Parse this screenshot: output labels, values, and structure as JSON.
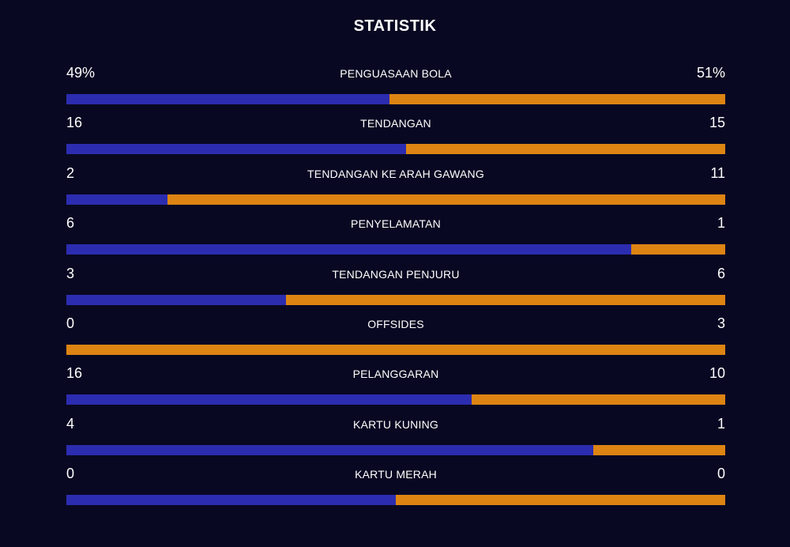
{
  "title": "STATISTIK",
  "colors": {
    "background": "#080822",
    "home": "#2c2cb0",
    "away": "#dd8413",
    "text": "#ffffff"
  },
  "stats": [
    {
      "label": "PENGUASAAN BOLA",
      "home": "49%",
      "away": "51%",
      "home_share": 0.49
    },
    {
      "label": "TENDANGAN",
      "home": "16",
      "away": "15",
      "home_share": 0.516
    },
    {
      "label": "TENDANGAN KE ARAH GAWANG",
      "home": "2",
      "away": "11",
      "home_share": 0.154
    },
    {
      "label": "PENYELAMATAN",
      "home": "6",
      "away": "1",
      "home_share": 0.857
    },
    {
      "label": "TENDANGAN PENJURU",
      "home": "3",
      "away": "6",
      "home_share": 0.333
    },
    {
      "label": "OFFSIDES",
      "home": "0",
      "away": "3",
      "home_share": 0.0
    },
    {
      "label": "PELANGGARAN",
      "home": "16",
      "away": "10",
      "home_share": 0.615
    },
    {
      "label": "KARTU KUNING",
      "home": "4",
      "away": "1",
      "home_share": 0.8
    },
    {
      "label": "KARTU MERAH",
      "home": "0",
      "away": "0",
      "home_share": 0.5
    }
  ]
}
